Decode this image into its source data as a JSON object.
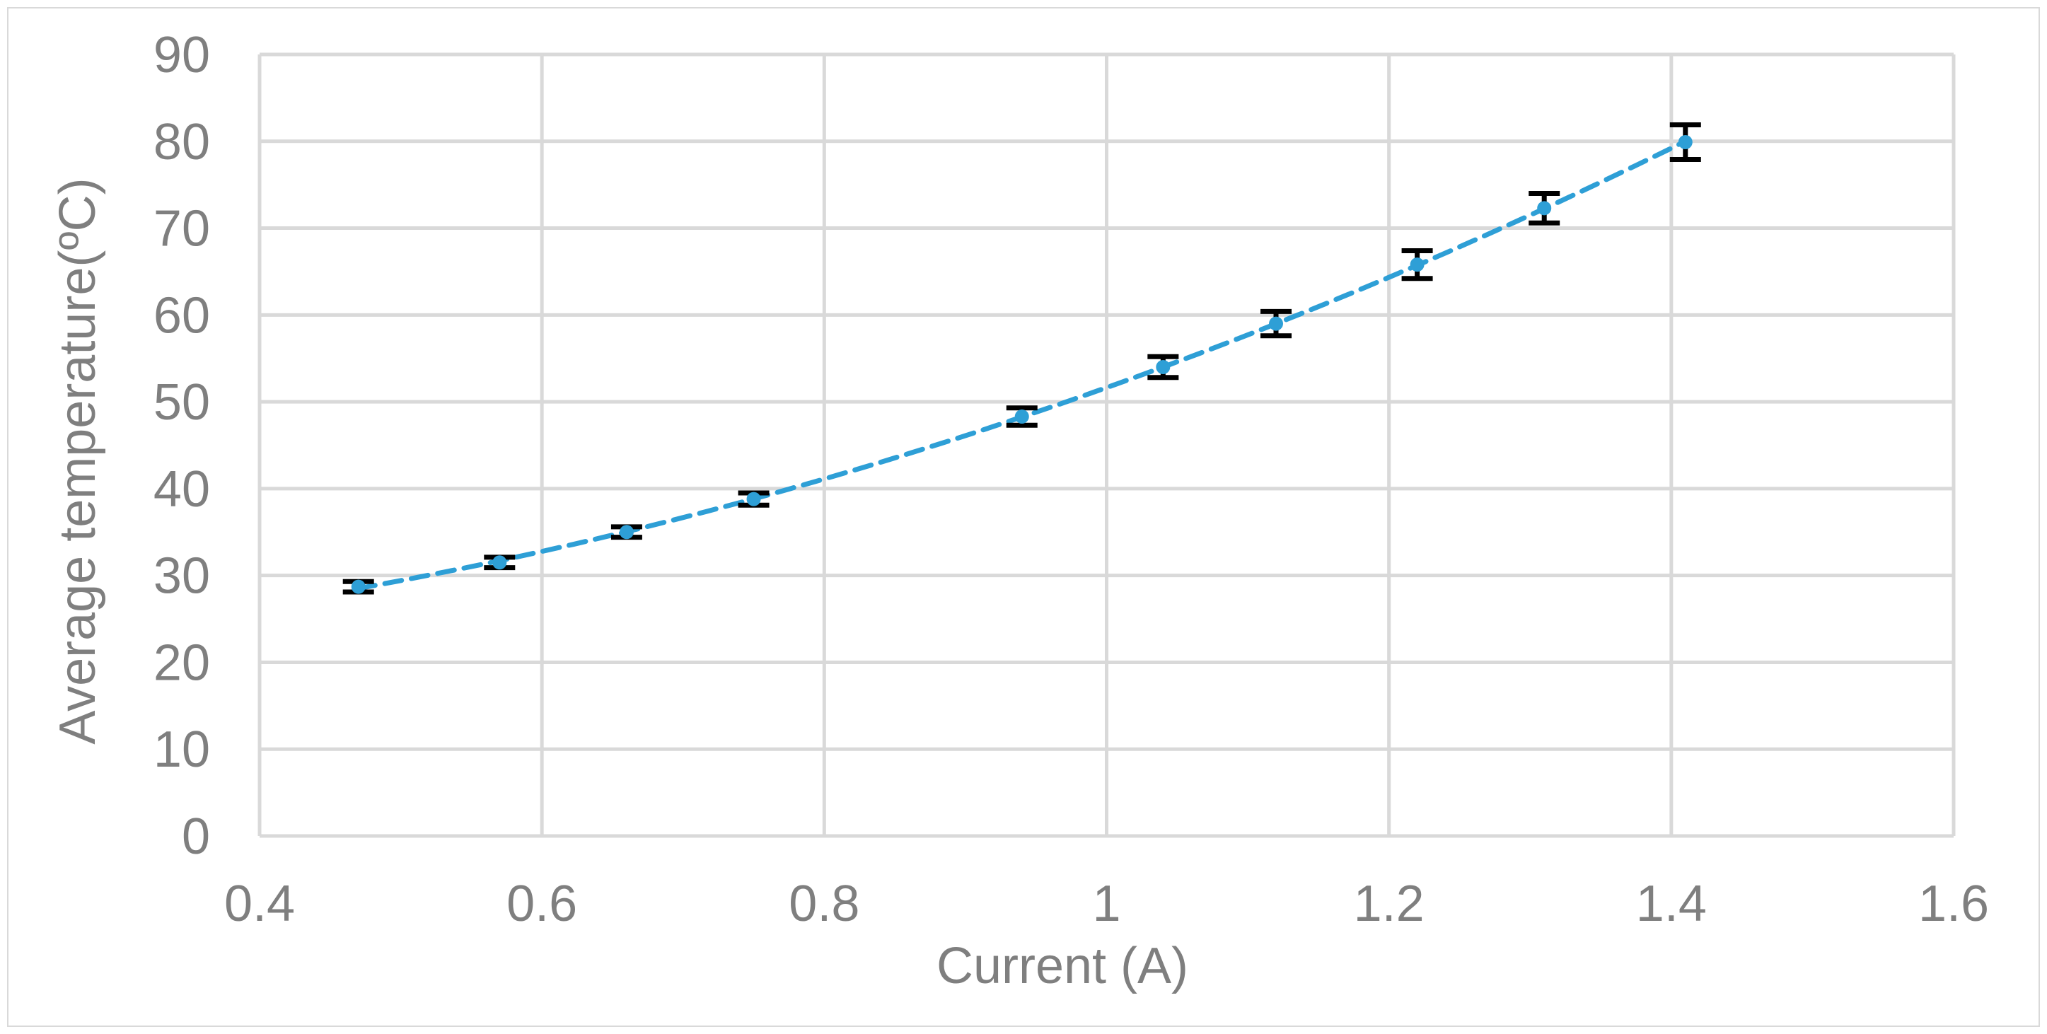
{
  "chart_data": {
    "type": "scatter",
    "title": "",
    "xlabel": "Current (A)",
    "ylabel": "Average temperature(ºC)",
    "xlim": [
      0.4,
      1.6
    ],
    "ylim": [
      0,
      90
    ],
    "xticks": [
      0.4,
      0.6,
      0.8,
      1,
      1.2,
      1.4,
      1.6
    ],
    "xtick_labels": [
      "0.4",
      "0.6",
      "0.8",
      "1",
      "1.2",
      "1.4",
      "1.6"
    ],
    "yticks": [
      0,
      10,
      20,
      30,
      40,
      50,
      60,
      70,
      80,
      90
    ],
    "ytick_labels": [
      "0",
      "10",
      "20",
      "30",
      "40",
      "50",
      "60",
      "70",
      "80",
      "90"
    ],
    "grid": true,
    "legend": "none",
    "series": [
      {
        "marker_color": "#2e9fd6",
        "points": [
          {
            "x": 0.47,
            "y": 28.7,
            "err": 0.6
          },
          {
            "x": 0.57,
            "y": 31.5,
            "err": 0.6
          },
          {
            "x": 0.66,
            "y": 35.0,
            "err": 0.6
          },
          {
            "x": 0.75,
            "y": 38.8,
            "err": 0.7
          },
          {
            "x": 0.94,
            "y": 48.3,
            "err": 1.0
          },
          {
            "x": 1.04,
            "y": 54.0,
            "err": 1.2
          },
          {
            "x": 1.12,
            "y": 59.0,
            "err": 1.4
          },
          {
            "x": 1.22,
            "y": 65.8,
            "err": 1.6
          },
          {
            "x": 1.31,
            "y": 72.3,
            "err": 1.7
          },
          {
            "x": 1.41,
            "y": 79.9,
            "err": 2.0
          }
        ]
      }
    ],
    "trendline": {
      "type": "polynomial",
      "style": "dashed",
      "color": "#2e9fd6",
      "x_range": [
        0.47,
        1.41
      ]
    },
    "colors": {
      "gridline": "#d9d9d9",
      "errorbar": "#000000",
      "text": "#7f7f7f"
    }
  }
}
